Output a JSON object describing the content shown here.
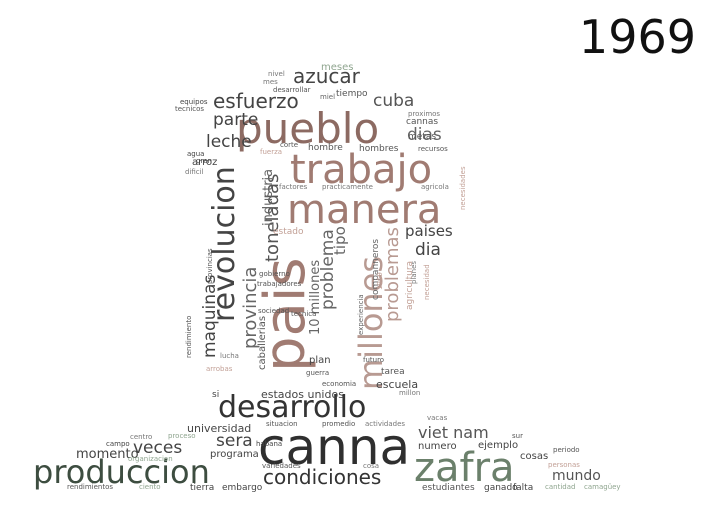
{
  "year": "1969",
  "palette": {
    "rose": "#a07b72",
    "rose_light": "#c2a096",
    "green_dark": "#3d4d40",
    "gray_dark": "#333333",
    "green_mid": "#6a7d6a"
  },
  "words": [
    {
      "t": "canna",
      "c": "#2f2f2f"
    },
    {
      "t": "zafra",
      "c": "#6b806b"
    },
    {
      "t": "produccion",
      "c": "#3d4d40"
    },
    {
      "t": "pais",
      "c": "#a07b72"
    },
    {
      "t": "pueblo",
      "c": "#8c6a62"
    },
    {
      "t": "trabajo",
      "c": "#a07b72"
    },
    {
      "t": "manera",
      "c": "#a07b72"
    },
    {
      "t": "desarrollo",
      "c": "#333333"
    },
    {
      "t": "revolucion",
      "c": "#444444"
    },
    {
      "t": "millones",
      "c": "#b89a92"
    },
    {
      "t": "condiciones",
      "c": "#333333"
    },
    {
      "t": "esfuerzo",
      "c": "#444444"
    },
    {
      "t": "azucar",
      "c": "#444444"
    },
    {
      "t": "toneladas",
      "c": "#555555"
    },
    {
      "t": "problema",
      "c": "#666666"
    },
    {
      "t": "problemas",
      "c": "#b89a92"
    },
    {
      "t": "provincia",
      "c": "#666666"
    },
    {
      "t": "maquinas",
      "c": "#444444"
    },
    {
      "t": "leche",
      "c": "#444444"
    },
    {
      "t": "parte",
      "c": "#444444"
    },
    {
      "t": "cuba",
      "c": "#555555"
    },
    {
      "t": "dias",
      "c": "#666666"
    },
    {
      "t": "dia",
      "c": "#444444"
    },
    {
      "t": "paises",
      "c": "#444444"
    },
    {
      "t": "veces",
      "c": "#444444"
    },
    {
      "t": "sera",
      "c": "#444444"
    },
    {
      "t": "viet nam",
      "c": "#555555"
    },
    {
      "t": "mundo",
      "c": "#555555"
    },
    {
      "t": "momento",
      "c": "#444444"
    },
    {
      "t": "estados unidos",
      "c": "#444444"
    },
    {
      "t": "10 millones",
      "c": "#666666"
    },
    {
      "t": "tipo",
      "c": "#666666"
    },
    {
      "t": "industria",
      "c": "#666666"
    },
    {
      "t": "meses",
      "c": "#8fa58f"
    },
    {
      "t": "nivel",
      "c": "#777777"
    },
    {
      "t": "mes",
      "c": "#777777"
    },
    {
      "t": "desarrollar",
      "c": "#555555"
    },
    {
      "t": "tiempo",
      "c": "#555555"
    },
    {
      "t": "miel",
      "c": "#666666"
    },
    {
      "t": "equipos",
      "c": "#444444"
    },
    {
      "t": "tecnicos",
      "c": "#555555"
    },
    {
      "t": "proximos",
      "c": "#777777"
    },
    {
      "t": "cannas",
      "c": "#555555"
    },
    {
      "t": "metas",
      "c": "#555555"
    },
    {
      "t": "recursos",
      "c": "#555555"
    },
    {
      "t": "agua",
      "c": "#444444"
    },
    {
      "t": "gran",
      "c": "#444444"
    },
    {
      "t": "arroz",
      "c": "#444444"
    },
    {
      "t": "dificil",
      "c": "#777777"
    },
    {
      "t": "fuerza",
      "c": "#c2a096"
    },
    {
      "t": "corte",
      "c": "#555555"
    },
    {
      "t": "hombre",
      "c": "#555555"
    },
    {
      "t": "hombres",
      "c": "#555555"
    },
    {
      "t": "factores",
      "c": "#777777"
    },
    {
      "t": "practicamente",
      "c": "#777777"
    },
    {
      "t": "agricola",
      "c": "#777777"
    },
    {
      "t": "necesidades",
      "c": "#c2a096"
    },
    {
      "t": "estado",
      "c": "#c2a096"
    },
    {
      "t": "companneros",
      "c": "#666666"
    },
    {
      "t": "agricultura",
      "c": "#c2a096"
    },
    {
      "t": "experiencia",
      "c": "#666666"
    },
    {
      "t": "planes",
      "c": "#777777"
    },
    {
      "t": "necesidad",
      "c": "#c2a096"
    },
    {
      "t": "provincias",
      "c": "#555555"
    },
    {
      "t": "caballerias",
      "c": "#555555"
    },
    {
      "t": "gobierno",
      "c": "#555555"
    },
    {
      "t": "trabajadores",
      "c": "#555555"
    },
    {
      "t": "sociedad",
      "c": "#555555"
    },
    {
      "t": "tecnica",
      "c": "#555555"
    },
    {
      "t": "rendimiento",
      "c": "#555555"
    },
    {
      "t": "plan",
      "c": "#444444"
    },
    {
      "t": "guerra",
      "c": "#555555"
    },
    {
      "t": "futuro",
      "c": "#555555"
    },
    {
      "t": "tarea",
      "c": "#555555"
    },
    {
      "t": "economia",
      "c": "#555555"
    },
    {
      "t": "escuela",
      "c": "#444444"
    },
    {
      "t": "lucha",
      "c": "#777777"
    },
    {
      "t": "arrobas",
      "c": "#c2a096"
    },
    {
      "t": "si",
      "c": "#444444"
    },
    {
      "t": "millon",
      "c": "#777777"
    },
    {
      "t": "universidad",
      "c": "#444444"
    },
    {
      "t": "situacion",
      "c": "#555555"
    },
    {
      "t": "promedio",
      "c": "#555555"
    },
    {
      "t": "actividades",
      "c": "#777777"
    },
    {
      "t": "vacas",
      "c": "#777777"
    },
    {
      "t": "centro",
      "c": "#777777"
    },
    {
      "t": "proceso",
      "c": "#8fa58f"
    },
    {
      "t": "campo",
      "c": "#444444"
    },
    {
      "t": "habana",
      "c": "#444444"
    },
    {
      "t": "programa",
      "c": "#444444"
    },
    {
      "t": "numero",
      "c": "#444444"
    },
    {
      "t": "ejemplo",
      "c": "#444444"
    },
    {
      "t": "sur",
      "c": "#555555"
    },
    {
      "t": "cosas",
      "c": "#444444"
    },
    {
      "t": "periodo",
      "c": "#555555"
    },
    {
      "t": "personas",
      "c": "#c2a096"
    },
    {
      "t": "organizacion",
      "c": "#8fa58f"
    },
    {
      "t": "variedades",
      "c": "#555555"
    },
    {
      "t": "cosa",
      "c": "#777777"
    },
    {
      "t": "rendimientos",
      "c": "#555555"
    },
    {
      "t": "ciento",
      "c": "#8fa58f"
    },
    {
      "t": "tierra",
      "c": "#444444"
    },
    {
      "t": "embargo",
      "c": "#444444"
    },
    {
      "t": "estudiantes",
      "c": "#555555"
    },
    {
      "t": "ganado",
      "c": "#444444"
    },
    {
      "t": "falta",
      "c": "#444444"
    },
    {
      "t": "cantidad",
      "c": "#8fa58f"
    },
    {
      "t": "camagüey",
      "c": "#8fa58f"
    },
    {
      "t": "1969",
      "c": "#c2a096"
    }
  ]
}
